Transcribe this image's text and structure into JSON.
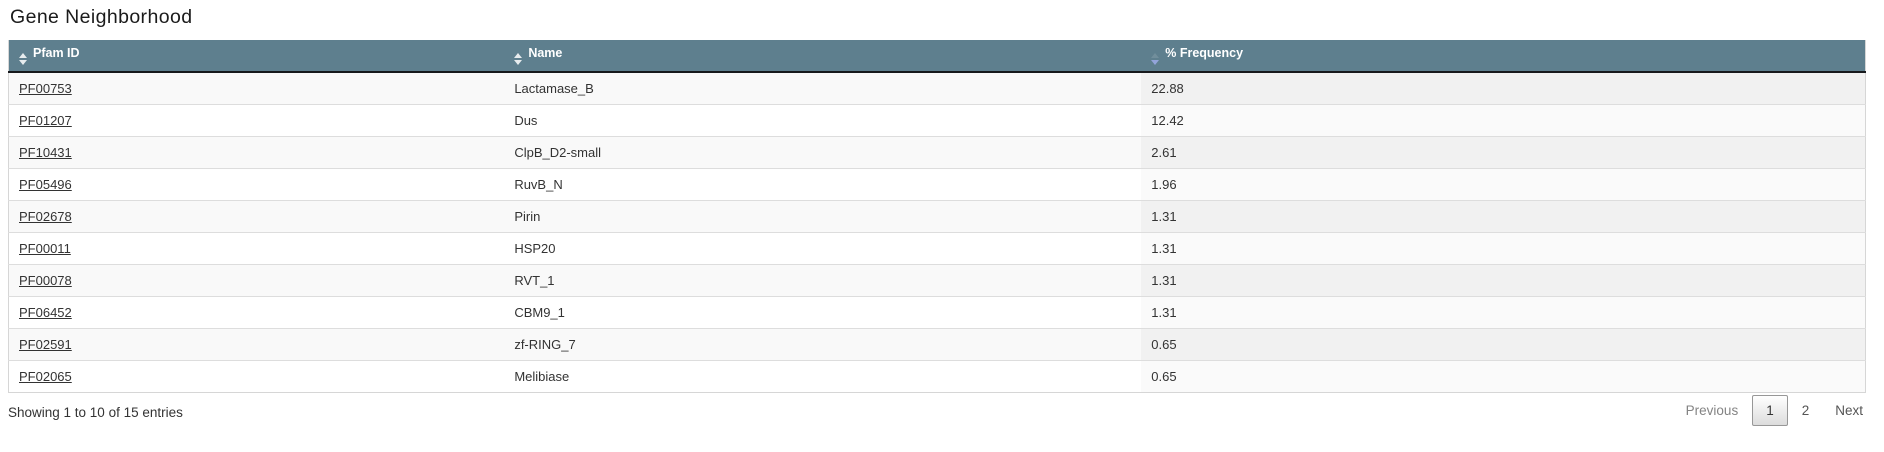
{
  "page": {
    "title": "Gene Neighborhood"
  },
  "colors": {
    "header_bg": "#5e7f8e",
    "header_text": "#ffffff",
    "sort_active_arrow": "#93a4da",
    "row_stripe": "#f9f9f9",
    "sorted_column_shade": "#f1f1f1",
    "link_color": "#333333"
  },
  "table": {
    "columns": [
      {
        "label": "Pfam ID",
        "sort": "none"
      },
      {
        "label": "Name",
        "sort": "none"
      },
      {
        "label": "% Frequency",
        "sort": "desc"
      }
    ],
    "rows": [
      {
        "pfam_id": "PF00753",
        "name": "Lactamase_B",
        "frequency": "22.88"
      },
      {
        "pfam_id": "PF01207",
        "name": "Dus",
        "frequency": "12.42"
      },
      {
        "pfam_id": "PF10431",
        "name": "ClpB_D2-small",
        "frequency": "2.61"
      },
      {
        "pfam_id": "PF05496",
        "name": "RuvB_N",
        "frequency": "1.96"
      },
      {
        "pfam_id": "PF02678",
        "name": "Pirin",
        "frequency": "1.31"
      },
      {
        "pfam_id": "PF00011",
        "name": "HSP20",
        "frequency": "1.31"
      },
      {
        "pfam_id": "PF00078",
        "name": "RVT_1",
        "frequency": "1.31"
      },
      {
        "pfam_id": "PF06452",
        "name": "CBM9_1",
        "frequency": "1.31"
      },
      {
        "pfam_id": "PF02591",
        "name": "zf-RING_7",
        "frequency": "0.65"
      },
      {
        "pfam_id": "PF02065",
        "name": "Melibiase",
        "frequency": "0.65"
      }
    ]
  },
  "footer": {
    "info": "Showing 1 to 10 of 15 entries",
    "pagination": {
      "previous_label": "Previous",
      "pages": [
        "1",
        "2"
      ],
      "current_page": "1",
      "next_label": "Next"
    }
  }
}
